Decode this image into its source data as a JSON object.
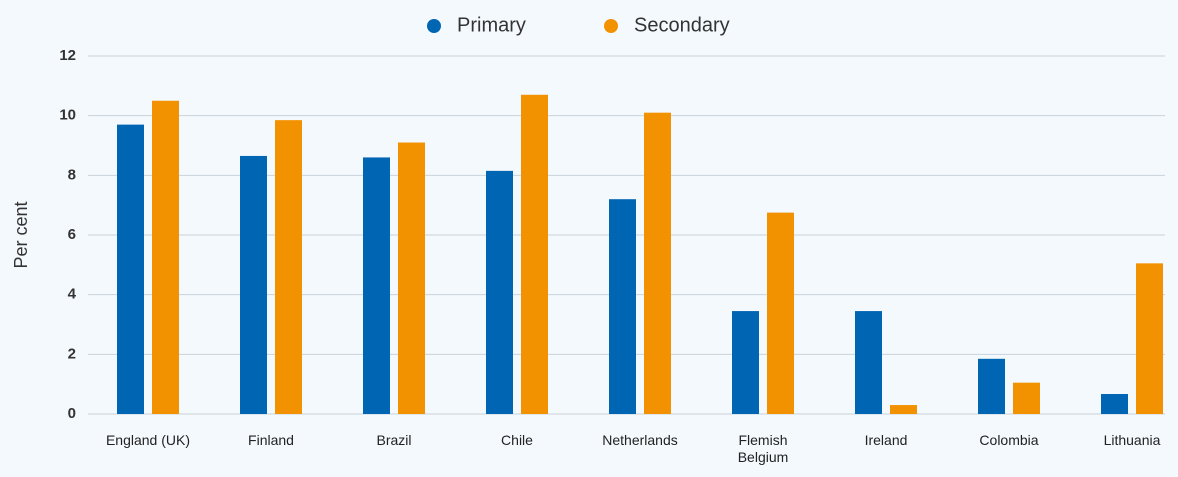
{
  "chart_data": {
    "type": "bar",
    "categories": [
      "England (UK)",
      "Finland",
      "Brazil",
      "Chile",
      "Netherlands",
      "Flemish Belgium",
      "Ireland",
      "Colombia",
      "Lithuania"
    ],
    "series": [
      {
        "name": "Primary",
        "color": "#0066b3",
        "values": [
          9.7,
          8.65,
          8.6,
          8.15,
          7.2,
          3.45,
          3.45,
          1.85,
          0.67
        ]
      },
      {
        "name": "Secondary",
        "color": "#f39200",
        "values": [
          10.5,
          9.85,
          9.1,
          10.7,
          10.1,
          6.75,
          0.3,
          1.05,
          5.05
        ]
      }
    ],
    "ylabel": "Per cent",
    "ylim": [
      0,
      12
    ],
    "yticks": [
      0,
      2,
      4,
      6,
      8,
      10,
      12
    ],
    "grid": true,
    "legend": "top"
  }
}
